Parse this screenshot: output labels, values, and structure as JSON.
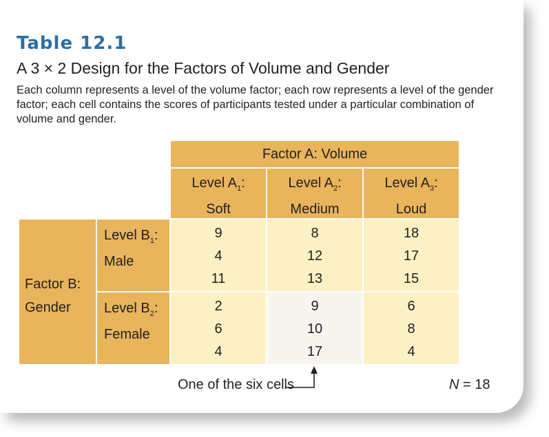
{
  "table_number": "Table 12.1",
  "title": "A 3 × 2 Design for the Factors of Volume and Gender",
  "description": "Each column represents a level of the volume factor; each row represents a level of the gender factor; each cell contains the scores of participants tested under a particular combination of volume and gender.",
  "factor_a": "Factor A: Volume",
  "columns": [
    {
      "level": "Level A",
      "sub": "1",
      "suffix": ":",
      "name": "Soft"
    },
    {
      "level": "Level A",
      "sub": "2",
      "suffix": ":",
      "name": "Medium"
    },
    {
      "level": "Level A",
      "sub": "3",
      "suffix": ":",
      "name": "Loud"
    }
  ],
  "factor_b": {
    "line1": "Factor B:",
    "line2": "Gender"
  },
  "rows": [
    {
      "level": "Level B",
      "sub": "1",
      "suffix": ":",
      "name": "Male",
      "cells": [
        [
          "9",
          "4",
          "11"
        ],
        [
          "8",
          "12",
          "13"
        ],
        [
          "18",
          "17",
          "15"
        ]
      ]
    },
    {
      "level": "Level B",
      "sub": "2",
      "suffix": ":",
      "name": "Female",
      "cells": [
        [
          "2",
          "6",
          "4"
        ],
        [
          "9",
          "10",
          "17"
        ],
        [
          "6",
          "8",
          "4"
        ]
      ]
    }
  ],
  "annotation": "One of the six cells",
  "n_label": "N",
  "n_value": "= 18",
  "colors": {
    "header": "#e8b45c",
    "cell": "#fbf1c4",
    "highlight_cell": "#f6f5ef",
    "title_blue": "#2c6ea1"
  }
}
